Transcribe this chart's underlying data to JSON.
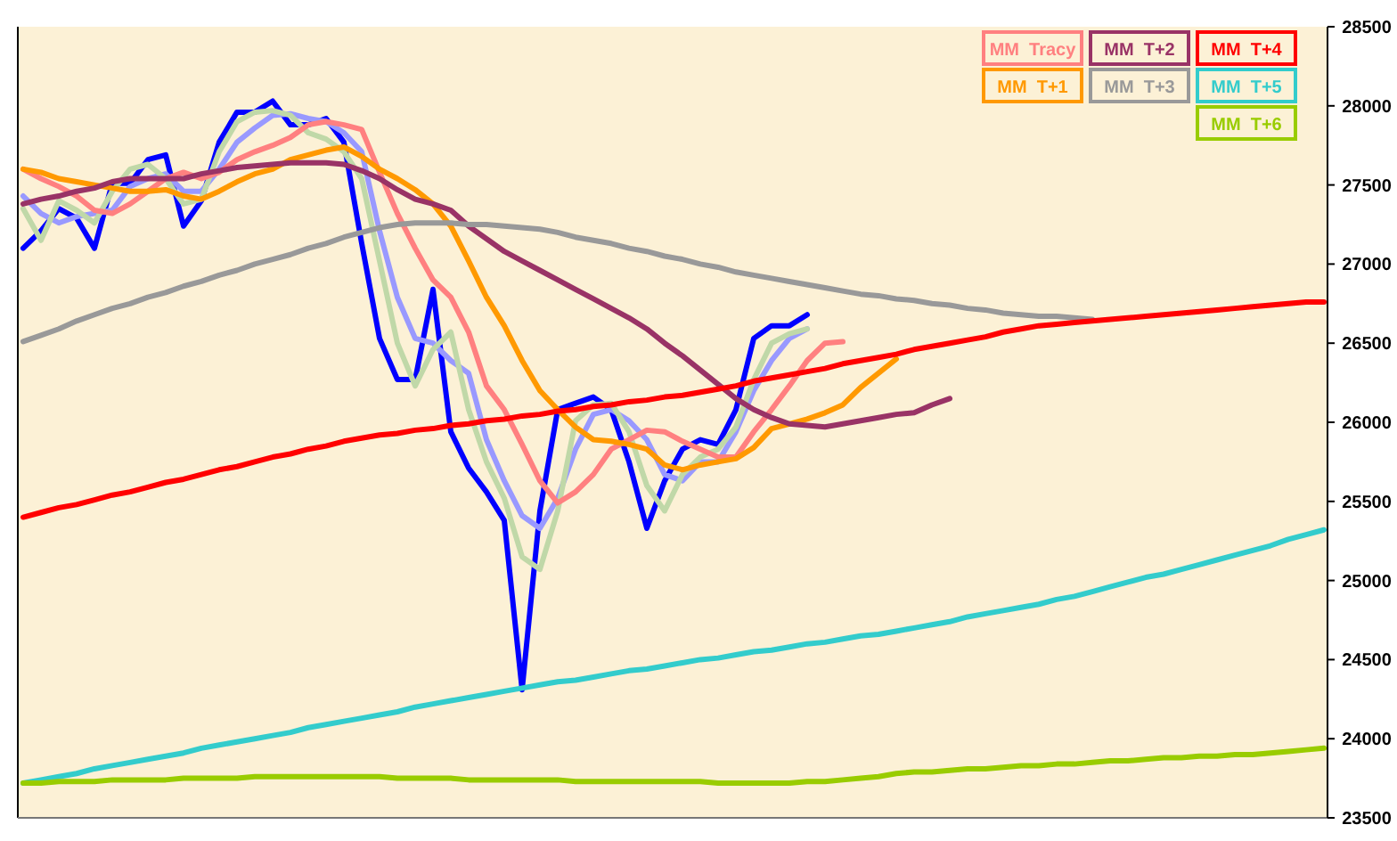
{
  "chart_data": {
    "type": "line",
    "categories": [
      null,
      null,
      null,
      null,
      null,
      null,
      null,
      null,
      null,
      null,
      null,
      null,
      null,
      null,
      null,
      null,
      null,
      null,
      null,
      null,
      null,
      null,
      null,
      null,
      null,
      null,
      null,
      null,
      null,
      null,
      null,
      null,
      null,
      null,
      null,
      null,
      null,
      null,
      null,
      null,
      null,
      null,
      null,
      null,
      null,
      null,
      null,
      null,
      null,
      null,
      null,
      null,
      null,
      null,
      null,
      null,
      null,
      null,
      null,
      null,
      null,
      null,
      null,
      null,
      null,
      null,
      null,
      null,
      null,
      null,
      null,
      null,
      null,
      null
    ],
    "ylim": [
      23500,
      28500
    ],
    "yticks": [
      23500,
      24000,
      24500,
      25000,
      25500,
      26000,
      26500,
      27000,
      27500,
      28000,
      28500
    ],
    "tick_labels": "y",
    "legend": "top right",
    "marker": "none",
    "line_style": "solid",
    "series": [
      {
        "color": "#0000ff",
        "values": [
          27100,
          27210,
          27350,
          27290,
          27100,
          27510,
          27510,
          27660,
          27690,
          27240,
          27400,
          27770,
          27960,
          27960,
          28030,
          27880,
          27880,
          27920,
          27770,
          27130,
          26530,
          26270,
          26270,
          26840,
          25940,
          25710,
          25560,
          25380,
          24310,
          25440,
          26080,
          26120,
          26160,
          26080,
          25750,
          25330,
          25630,
          25830,
          25890,
          25860,
          26080,
          26530,
          26610,
          26610,
          26680,
          null,
          null,
          null,
          null,
          null,
          null,
          null,
          null,
          null,
          null,
          null,
          null,
          null,
          null,
          null,
          null,
          null,
          null,
          null,
          null,
          null,
          null,
          null,
          null,
          null,
          null,
          null,
          null,
          null
        ]
      },
      {
        "color": "#9999ff",
        "values": [
          27430,
          27320,
          27260,
          27300,
          27320,
          27340,
          27490,
          27540,
          27570,
          27460,
          27460,
          27600,
          27770,
          27860,
          27940,
          27950,
          27920,
          27900,
          27830,
          27710,
          27210,
          26790,
          26530,
          26500,
          26390,
          26310,
          25890,
          25630,
          25410,
          25330,
          25520,
          25830,
          26050,
          26080,
          26010,
          25890,
          25670,
          25630,
          25750,
          25750,
          25940,
          26200,
          26390,
          26530,
          26590,
          null,
          null,
          null,
          null,
          null,
          null,
          null,
          null,
          null,
          null,
          null,
          null,
          null,
          null,
          null,
          null,
          null,
          null,
          null,
          null,
          null,
          null,
          null,
          null,
          null,
          null,
          null,
          null,
          null
        ]
      },
      {
        "color": "#c0d8a8",
        "values": [
          27350,
          27150,
          27400,
          27340,
          27260,
          27460,
          27600,
          27630,
          27540,
          27380,
          27410,
          27710,
          27900,
          27960,
          27970,
          27940,
          27830,
          27790,
          27710,
          27540,
          27020,
          26500,
          26230,
          26460,
          26570,
          26080,
          25750,
          25520,
          25150,
          25070,
          25440,
          26010,
          26110,
          26120,
          25940,
          25600,
          25440,
          25670,
          25780,
          25830,
          25970,
          26270,
          26500,
          26560,
          26590,
          null,
          null,
          null,
          null,
          null,
          null,
          null,
          null,
          null,
          null,
          null,
          null,
          null,
          null,
          null,
          null,
          null,
          null,
          null,
          null,
          null,
          null,
          null,
          null,
          null,
          null,
          null,
          null,
          null
        ]
      },
      {
        "name": "MM  Tracy",
        "color": "#ff8080",
        "values": [
          27600,
          27540,
          27490,
          27430,
          27340,
          27320,
          27380,
          27460,
          27540,
          27580,
          27540,
          27580,
          27660,
          27710,
          27750,
          27800,
          27880,
          27900,
          27880,
          27850,
          27580,
          27320,
          27100,
          26900,
          26790,
          26570,
          26230,
          26080,
          25860,
          25630,
          25490,
          25560,
          25670,
          25830,
          25890,
          25950,
          25940,
          25880,
          25830,
          25780,
          25780,
          25940,
          26080,
          26230,
          26390,
          26500,
          26510,
          null,
          null,
          null,
          null,
          null,
          null,
          null,
          null,
          null,
          null,
          null,
          null,
          null,
          null,
          null,
          null,
          null,
          null,
          null,
          null,
          null,
          null,
          null,
          null,
          null,
          null,
          null
        ]
      },
      {
        "name": "MM  T+1",
        "color": "#ff9900",
        "values": [
          27600,
          27580,
          27540,
          27520,
          27500,
          27480,
          27460,
          27460,
          27470,
          27430,
          27410,
          27460,
          27520,
          27570,
          27600,
          27660,
          27690,
          27720,
          27740,
          27680,
          27600,
          27540,
          27470,
          27380,
          27240,
          27020,
          26790,
          26610,
          26390,
          26200,
          26080,
          25970,
          25890,
          25880,
          25860,
          25830,
          25730,
          25700,
          25730,
          25750,
          25770,
          25840,
          25960,
          25990,
          26020,
          26060,
          26110,
          26220,
          26310,
          26400,
          null,
          null,
          null,
          null,
          null,
          null,
          null,
          null,
          null,
          null,
          null,
          null,
          null,
          null,
          null,
          null,
          null,
          null,
          null,
          null,
          null,
          null,
          null,
          null
        ]
      },
      {
        "name": "MM  T+2",
        "color": "#993366",
        "values": [
          27380,
          27410,
          27430,
          27460,
          27480,
          27520,
          27540,
          27540,
          27540,
          27540,
          27570,
          27590,
          27610,
          27620,
          27630,
          27640,
          27640,
          27640,
          27630,
          27590,
          27540,
          27470,
          27410,
          27380,
          27340,
          27240,
          27160,
          27080,
          27020,
          26960,
          26900,
          26840,
          26780,
          26720,
          26660,
          26590,
          26500,
          26420,
          26330,
          26240,
          26150,
          26080,
          26030,
          25990,
          25980,
          25970,
          25990,
          26010,
          26030,
          26050,
          26060,
          26110,
          26150,
          null,
          null,
          null,
          null,
          null,
          null,
          null,
          null,
          null,
          null,
          null,
          null,
          null,
          null,
          null,
          null,
          null,
          null,
          null,
          null,
          null
        ]
      },
      {
        "name": "MM  T+3",
        "color": "#999999",
        "values": [
          26510,
          26550,
          26590,
          26640,
          26680,
          26720,
          26750,
          26790,
          26820,
          26860,
          26890,
          26930,
          26960,
          27000,
          27030,
          27060,
          27100,
          27130,
          27170,
          27200,
          27230,
          27250,
          27260,
          27260,
          27260,
          27250,
          27250,
          27240,
          27230,
          27220,
          27200,
          27170,
          27150,
          27130,
          27100,
          27080,
          27050,
          27030,
          27000,
          26980,
          26950,
          26930,
          26910,
          26890,
          26870,
          26850,
          26830,
          26810,
          26800,
          26780,
          26770,
          26750,
          26740,
          26720,
          26710,
          26690,
          26680,
          26670,
          26670,
          26660,
          26650,
          null,
          null,
          null,
          null,
          null,
          null,
          null,
          null,
          null,
          null,
          null,
          null,
          null
        ]
      },
      {
        "name": "MM  T+4",
        "color": "#ff0000",
        "values": [
          25400,
          25430,
          25460,
          25480,
          25510,
          25540,
          25560,
          25590,
          25620,
          25640,
          25670,
          25700,
          25720,
          25750,
          25780,
          25800,
          25830,
          25850,
          25880,
          25900,
          25920,
          25930,
          25950,
          25960,
          25980,
          25990,
          26010,
          26020,
          26040,
          26050,
          26070,
          26080,
          26100,
          26110,
          26130,
          26140,
          26160,
          26170,
          26190,
          26210,
          26230,
          26260,
          26280,
          26300,
          26320,
          26340,
          26370,
          26390,
          26410,
          26430,
          26460,
          26480,
          26500,
          26520,
          26540,
          26570,
          26590,
          26610,
          26620,
          26630,
          26640,
          26650,
          26660,
          26670,
          26680,
          26690,
          26700,
          26710,
          26720,
          26730,
          26740,
          26750,
          26760,
          26760
        ]
      },
      {
        "name": "MM  T+5",
        "color": "#33cccc",
        "values": [
          23720,
          23740,
          23760,
          23780,
          23810,
          23830,
          23850,
          23870,
          23890,
          23910,
          23940,
          23960,
          23980,
          24000,
          24020,
          24040,
          24070,
          24090,
          24110,
          24130,
          24150,
          24170,
          24200,
          24220,
          24240,
          24260,
          24280,
          24300,
          24320,
          24340,
          24360,
          24370,
          24390,
          24410,
          24430,
          24440,
          24460,
          24480,
          24500,
          24510,
          24530,
          24550,
          24560,
          24580,
          24600,
          24610,
          24630,
          24650,
          24660,
          24680,
          24700,
          24720,
          24740,
          24770,
          24790,
          24810,
          24830,
          24850,
          24880,
          24900,
          24930,
          24960,
          24990,
          25020,
          25040,
          25070,
          25100,
          25130,
          25160,
          25190,
          25220,
          25260,
          25290,
          25320
        ]
      },
      {
        "name": "MM  T+6",
        "color": "#99cc00",
        "values": [
          23720,
          23720,
          23730,
          23730,
          23730,
          23740,
          23740,
          23740,
          23740,
          23750,
          23750,
          23750,
          23750,
          23760,
          23760,
          23760,
          23760,
          23760,
          23760,
          23760,
          23760,
          23750,
          23750,
          23750,
          23750,
          23740,
          23740,
          23740,
          23740,
          23740,
          23740,
          23730,
          23730,
          23730,
          23730,
          23730,
          23730,
          23730,
          23730,
          23720,
          23720,
          23720,
          23720,
          23720,
          23730,
          23730,
          23740,
          23750,
          23760,
          23780,
          23790,
          23790,
          23800,
          23810,
          23810,
          23820,
          23830,
          23830,
          23840,
          23840,
          23850,
          23860,
          23860,
          23870,
          23880,
          23880,
          23890,
          23890,
          23900,
          23900,
          23910,
          23920,
          23930,
          23940
        ]
      }
    ]
  }
}
